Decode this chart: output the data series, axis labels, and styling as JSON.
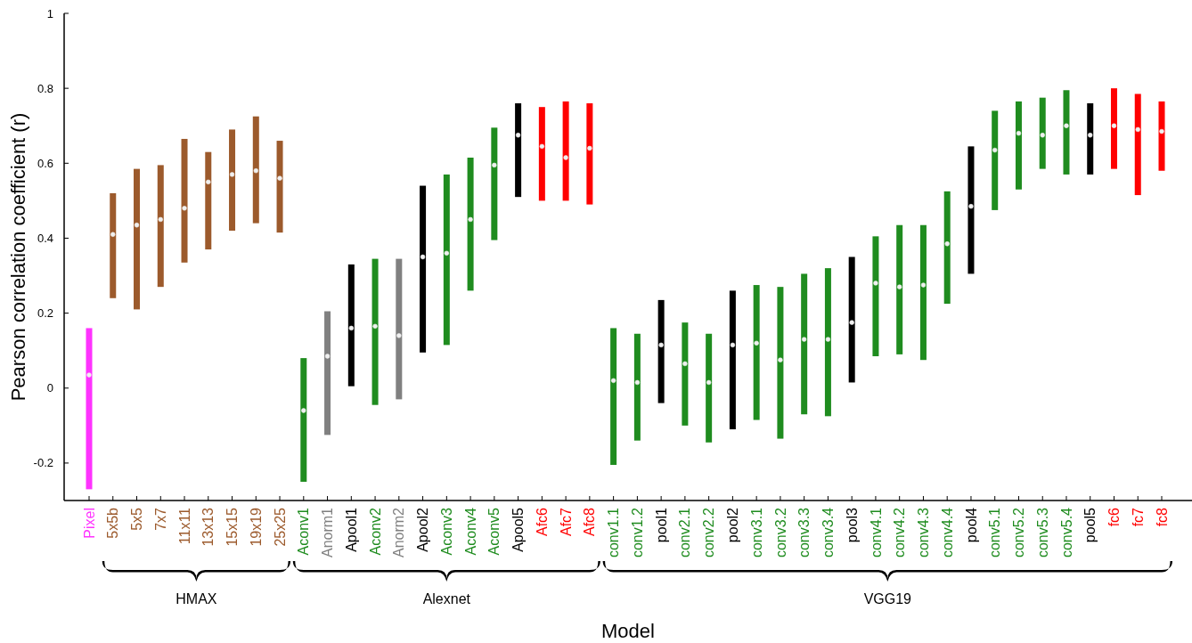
{
  "chart_data": {
    "type": "bar",
    "xlabel": "Model",
    "ylabel": "Pearson correlation coefficient (r)",
    "categories": [
      "Pixel",
      "5x5b",
      "5x5",
      "7x7",
      "11x11",
      "13x13",
      "15x15",
      "19x19",
      "25x25",
      "Aconv1",
      "Anorm1",
      "Apool1",
      "Aconv2",
      "Anorm2",
      "Apool2",
      "Aconv3",
      "Aconv4",
      "Aconv5",
      "Apool5",
      "Afc6",
      "Afc7",
      "Afc8",
      "conv1.1",
      "conv1.2",
      "pool1",
      "conv2.1",
      "conv2.2",
      "pool2",
      "conv3.1",
      "conv3.2",
      "conv3.3",
      "conv3.4",
      "pool3",
      "conv4.1",
      "conv4.2",
      "conv4.3",
      "conv4.4",
      "pool4",
      "conv5.1",
      "conv5.2",
      "conv5.3",
      "conv5.4",
      "pool5",
      "fc6",
      "fc7",
      "fc8"
    ],
    "series": [
      {
        "base": [
          -0.27,
          0.24,
          0.21,
          0.27,
          0.335,
          0.37,
          0.42,
          0.44,
          0.415,
          -0.25,
          -0.125,
          0.005,
          -0.045,
          -0.03,
          0.095,
          0.115,
          0.26,
          0.395,
          0.51,
          0.5,
          0.5,
          0.49,
          -0.205,
          -0.14,
          -0.04,
          -0.1,
          -0.145,
          -0.11,
          -0.085,
          -0.135,
          -0.07,
          -0.075,
          0.015,
          0.085,
          0.09,
          0.075,
          0.225,
          0.305,
          0.475,
          0.53,
          0.585,
          0.57,
          0.57,
          0.585,
          0.515,
          0.58
        ],
        "values": [
          0.43,
          0.28,
          0.375,
          0.325,
          0.33,
          0.26,
          0.27,
          0.285,
          0.245,
          0.33,
          0.33,
          0.325,
          0.39,
          0.375,
          0.445,
          0.455,
          0.355,
          0.3,
          0.25,
          0.25,
          0.265,
          0.27,
          0.365,
          0.285,
          0.275,
          0.275,
          0.29,
          0.37,
          0.36,
          0.405,
          0.375,
          0.395,
          0.335,
          0.32,
          0.345,
          0.36,
          0.3,
          0.34,
          0.265,
          0.235,
          0.19,
          0.225,
          0.19,
          0.215,
          0.27,
          0.185
        ],
        "colors": [
          "#ff33ff",
          "#9c5a2c",
          "#9c5a2c",
          "#9c5a2c",
          "#9c5a2c",
          "#9c5a2c",
          "#9c5a2c",
          "#9c5a2c",
          "#9c5a2c",
          "#1f8c1f",
          "#808080",
          "#000000",
          "#1f8c1f",
          "#808080",
          "#000000",
          "#1f8c1f",
          "#1f8c1f",
          "#1f8c1f",
          "#000000",
          "#ff0000",
          "#ff0000",
          "#ff0000",
          "#1f8c1f",
          "#1f8c1f",
          "#000000",
          "#1f8c1f",
          "#1f8c1f",
          "#000000",
          "#1f8c1f",
          "#1f8c1f",
          "#1f8c1f",
          "#1f8c1f",
          "#000000",
          "#1f8c1f",
          "#1f8c1f",
          "#1f8c1f",
          "#1f8c1f",
          "#000000",
          "#1f8c1f",
          "#1f8c1f",
          "#1f8c1f",
          "#1f8c1f",
          "#000000",
          "#ff0000",
          "#ff0000",
          "#ff0000"
        ]
      },
      {
        "type": "scatter",
        "color": "#f0f0f0",
        "marker": "circle",
        "x": [
          "Pixel",
          "5x5b",
          "5x5",
          "7x7",
          "11x11",
          "13x13",
          "15x15",
          "19x19",
          "25x25",
          "Aconv1",
          "Anorm1",
          "Apool1",
          "Aconv2",
          "Anorm2",
          "Apool2",
          "Aconv3",
          "Aconv4",
          "Aconv5",
          "Apool5",
          "Afc6",
          "Afc7",
          "Afc8",
          "conv1.1",
          "conv1.2",
          "pool1",
          "conv2.1",
          "conv2.2",
          "pool2",
          "conv3.1",
          "conv3.2",
          "conv3.3",
          "conv3.4",
          "pool3",
          "conv4.1",
          "conv4.2",
          "conv4.3",
          "conv4.4",
          "pool4",
          "conv5.1",
          "conv5.2",
          "conv5.3",
          "conv5.4",
          "pool5",
          "fc6",
          "fc7",
          "fc8"
        ],
        "values": [
          0.035,
          0.41,
          0.435,
          0.45,
          0.48,
          0.55,
          0.57,
          0.58,
          0.56,
          -0.06,
          0.085,
          0.16,
          0.165,
          0.14,
          0.35,
          0.36,
          0.45,
          0.595,
          0.675,
          0.645,
          0.615,
          0.64,
          0.02,
          0.015,
          0.115,
          0.065,
          0.015,
          0.115,
          0.12,
          0.075,
          0.13,
          0.13,
          0.175,
          0.28,
          0.27,
          0.275,
          0.385,
          0.485,
          0.635,
          0.68,
          0.675,
          0.7,
          0.675,
          0.7,
          0.69,
          0.685
        ]
      }
    ],
    "ylim": [
      -0.3,
      1
    ],
    "yticks": [
      -0.2,
      0,
      0.2,
      0.4,
      0.6,
      0.8,
      1
    ],
    "grid": false,
    "annotations": [
      "HMAX",
      "Alexnet",
      "VGG19"
    ]
  }
}
